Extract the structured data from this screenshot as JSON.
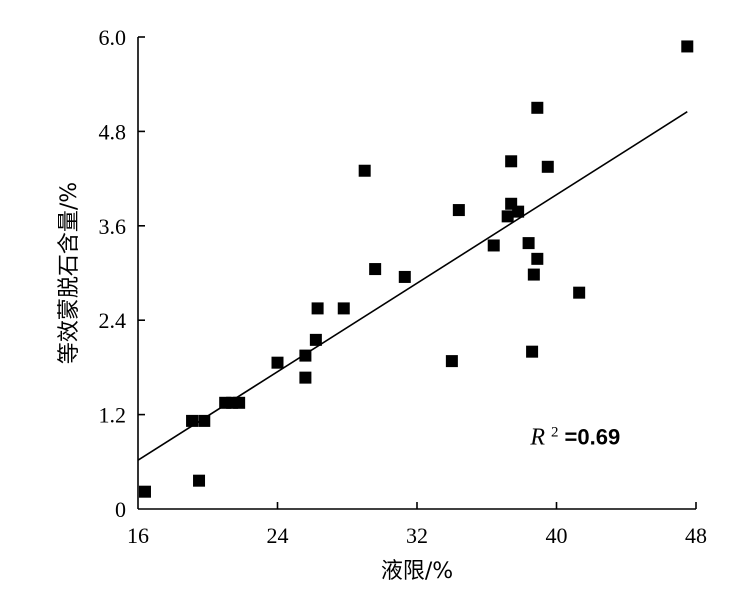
{
  "chart_data": {
    "type": "scatter",
    "title": "",
    "xlabel": "液限/%",
    "ylabel": "等效蒙脱石含量/%",
    "xlim": [
      16,
      48
    ],
    "ylim": [
      0,
      6.0
    ],
    "x_ticks": [
      16,
      24,
      32,
      40,
      48
    ],
    "x_tick_labels": [
      "16",
      "24",
      "32",
      "40",
      "48"
    ],
    "y_ticks": [
      0,
      1.2,
      2.4,
      3.6,
      4.8,
      6.0
    ],
    "y_tick_labels": [
      "0",
      "1.2",
      "2.4",
      "3.6",
      "4.8",
      "6.0"
    ],
    "grid": false,
    "legend": "none",
    "points": [
      {
        "x": 16.4,
        "y": 0.22
      },
      {
        "x": 19.1,
        "y": 1.12
      },
      {
        "x": 19.5,
        "y": 0.36
      },
      {
        "x": 19.8,
        "y": 1.12
      },
      {
        "x": 21.0,
        "y": 1.35
      },
      {
        "x": 21.4,
        "y": 1.35
      },
      {
        "x": 21.8,
        "y": 1.35
      },
      {
        "x": 24.0,
        "y": 1.86
      },
      {
        "x": 25.6,
        "y": 1.67
      },
      {
        "x": 25.6,
        "y": 1.95
      },
      {
        "x": 26.2,
        "y": 2.15
      },
      {
        "x": 26.3,
        "y": 2.55
      },
      {
        "x": 27.8,
        "y": 2.55
      },
      {
        "x": 29.0,
        "y": 4.3
      },
      {
        "x": 29.6,
        "y": 3.05
      },
      {
        "x": 31.3,
        "y": 2.95
      },
      {
        "x": 34.0,
        "y": 1.88
      },
      {
        "x": 34.4,
        "y": 3.8
      },
      {
        "x": 36.4,
        "y": 3.35
      },
      {
        "x": 37.2,
        "y": 3.72
      },
      {
        "x": 37.4,
        "y": 3.88
      },
      {
        "x": 37.4,
        "y": 4.42
      },
      {
        "x": 37.8,
        "y": 3.78
      },
      {
        "x": 38.4,
        "y": 3.38
      },
      {
        "x": 38.6,
        "y": 2.0
      },
      {
        "x": 38.7,
        "y": 2.98
      },
      {
        "x": 38.9,
        "y": 3.18
      },
      {
        "x": 38.9,
        "y": 5.1
      },
      {
        "x": 39.5,
        "y": 4.35
      },
      {
        "x": 41.3,
        "y": 2.75
      },
      {
        "x": 47.5,
        "y": 5.88
      }
    ],
    "trendline": {
      "x": [
        16,
        47.5
      ],
      "y": [
        0.62,
        5.05
      ]
    },
    "annotation": {
      "prefix": "R",
      "sup": "2",
      "suffix": "=0.69",
      "x": 38.5,
      "y": 0.82
    },
    "marker_color": "#000000"
  }
}
